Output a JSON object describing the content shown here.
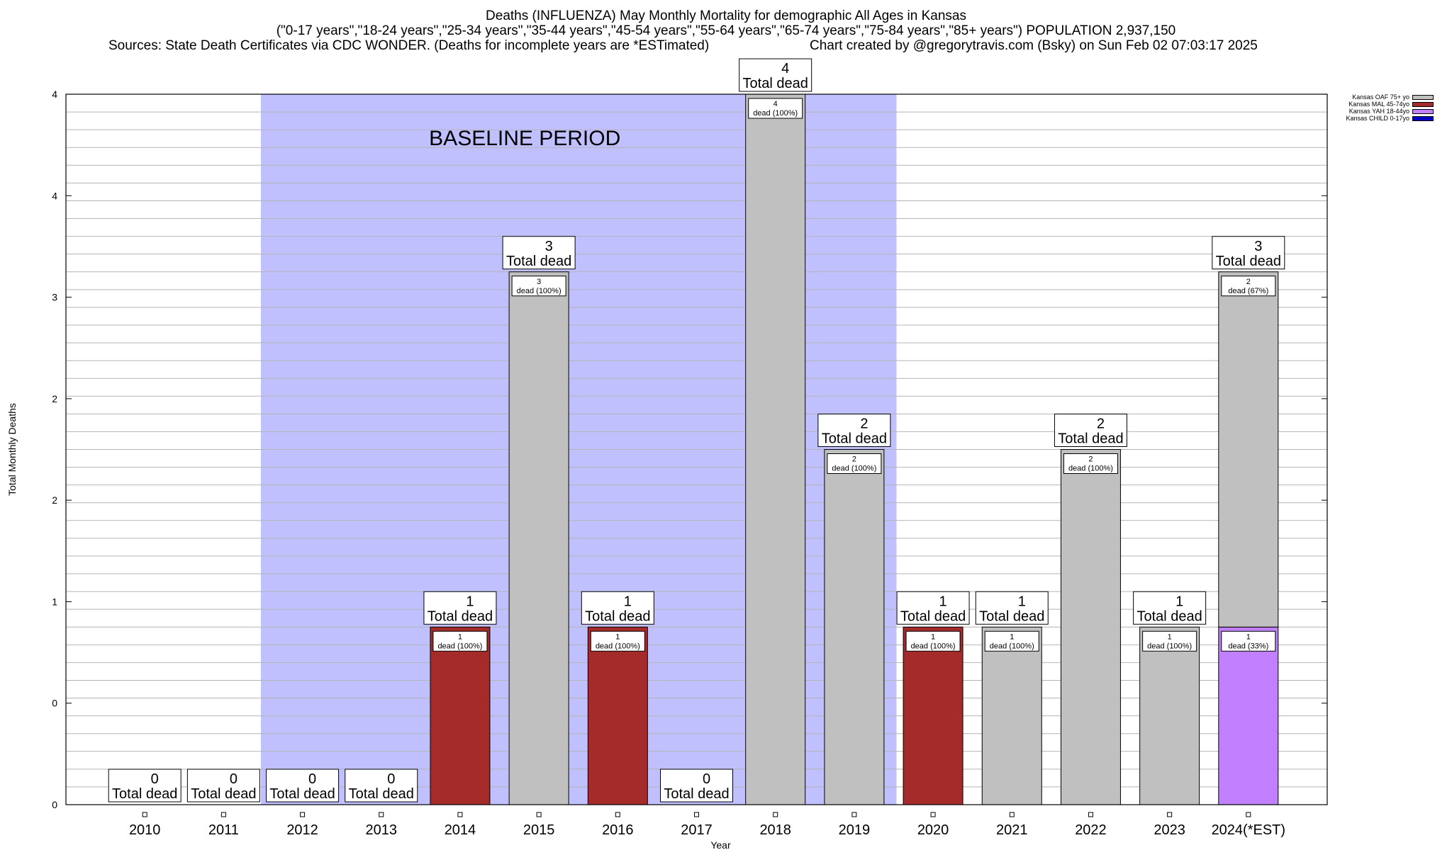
{
  "header": {
    "title_line1": "Deaths (INFLUENZA) May Monthly Mortality for demographic All Ages in Kansas",
    "title_line2": "(\"0-17 years\",\"18-24 years\",\"25-34 years\",\"35-44 years\",\"45-54 years\",\"55-64 years\",\"65-74 years\",\"75-84 years\",\"85+ years\") POPULATION 2,937,150",
    "sources": "Sources: State Death Certificates via CDC WONDER. (Deaths for incomplete years are *ESTimated)",
    "credit": "Chart created by @gregorytravis.com (Bsky) on Sun Feb 02 07:03:17 2025"
  },
  "legend": [
    {
      "label": "Kansas OAF 75+ yo",
      "color": "#c0c0c0"
    },
    {
      "label": "Kansas MAL 45-74yo",
      "color": "#a52a2a"
    },
    {
      "label": "Kansas YAH 18-44yo",
      "color": "#c080ff"
    },
    {
      "label": "Kansas CHILD 0-17yo",
      "color": "#0000c0"
    }
  ],
  "chart_data": {
    "type": "bar",
    "stacked": true,
    "title": "Deaths (INFLUENZA) May Monthly Mortality for demographic All Ages in Kansas",
    "xlabel": "Year",
    "ylabel": "Total Monthly Deaths",
    "ylim": [
      0,
      4
    ],
    "y_tick_labels": [
      "0",
      "0",
      "1",
      "2",
      "2",
      "3",
      "4",
      "4"
    ],
    "grid": true,
    "legend_position": "top-right",
    "categories": [
      "2010",
      "2011",
      "2012",
      "2013",
      "2014",
      "2015",
      "2016",
      "2017",
      "2018",
      "2019",
      "2020",
      "2021",
      "2022",
      "2023",
      "2024(*EST)"
    ],
    "totals": [
      0,
      0,
      0,
      0,
      1,
      3,
      1,
      0,
      4,
      2,
      1,
      1,
      2,
      1,
      3
    ],
    "total_label_suffix": "Total dead",
    "series": [
      {
        "name": "Kansas CHILD 0-17yo",
        "color": "#0000c0",
        "values": [
          0,
          0,
          0,
          0,
          0,
          0,
          0,
          0,
          0,
          0,
          0,
          0,
          0,
          0,
          0
        ]
      },
      {
        "name": "Kansas YAH 18-44yo",
        "color": "#c080ff",
        "values": [
          0,
          0,
          0,
          0,
          0,
          0,
          0,
          0,
          0,
          0,
          0,
          0,
          0,
          0,
          1
        ]
      },
      {
        "name": "Kansas MAL 45-74yo",
        "color": "#a52a2a",
        "values": [
          0,
          0,
          0,
          0,
          1,
          0,
          1,
          0,
          0,
          0,
          1,
          0,
          0,
          0,
          0
        ]
      },
      {
        "name": "Kansas OAF 75+ yo",
        "color": "#c0c0c0",
        "values": [
          0,
          0,
          0,
          0,
          0,
          3,
          0,
          0,
          4,
          2,
          0,
          1,
          2,
          1,
          2
        ]
      }
    ],
    "segment_labels": [
      [],
      [],
      [],
      [],
      [
        {
          "series": "Kansas MAL 45-74yo",
          "count": "1",
          "text": "dead (100%)"
        }
      ],
      [
        {
          "series": "Kansas OAF 75+ yo",
          "count": "3",
          "text": "dead (100%)"
        }
      ],
      [
        {
          "series": "Kansas MAL 45-74yo",
          "count": "1",
          "text": "dead (100%)"
        }
      ],
      [],
      [
        {
          "series": "Kansas OAF 75+ yo",
          "count": "4",
          "text": "dead (100%)"
        }
      ],
      [
        {
          "series": "Kansas OAF 75+ yo",
          "count": "2",
          "text": "dead (100%)"
        }
      ],
      [
        {
          "series": "Kansas MAL 45-74yo",
          "count": "1",
          "text": "dead (100%)"
        }
      ],
      [
        {
          "series": "Kansas OAF 75+ yo",
          "count": "1",
          "text": "dead (100%)"
        }
      ],
      [
        {
          "series": "Kansas OAF 75+ yo",
          "count": "2",
          "text": "dead (100%)"
        }
      ],
      [
        {
          "series": "Kansas OAF 75+ yo",
          "count": "1",
          "text": "dead (100%)"
        }
      ],
      [
        {
          "series": "Kansas YAH 18-44yo",
          "count": "1",
          "text": "dead (33%)"
        },
        {
          "series": "Kansas OAF 75+ yo",
          "count": "2",
          "text": "dead (67%)"
        }
      ]
    ],
    "baseline_period": {
      "label": "BASELINE PERIOD",
      "from": "2012",
      "to": "2019",
      "color": "#c0c0ff"
    }
  }
}
